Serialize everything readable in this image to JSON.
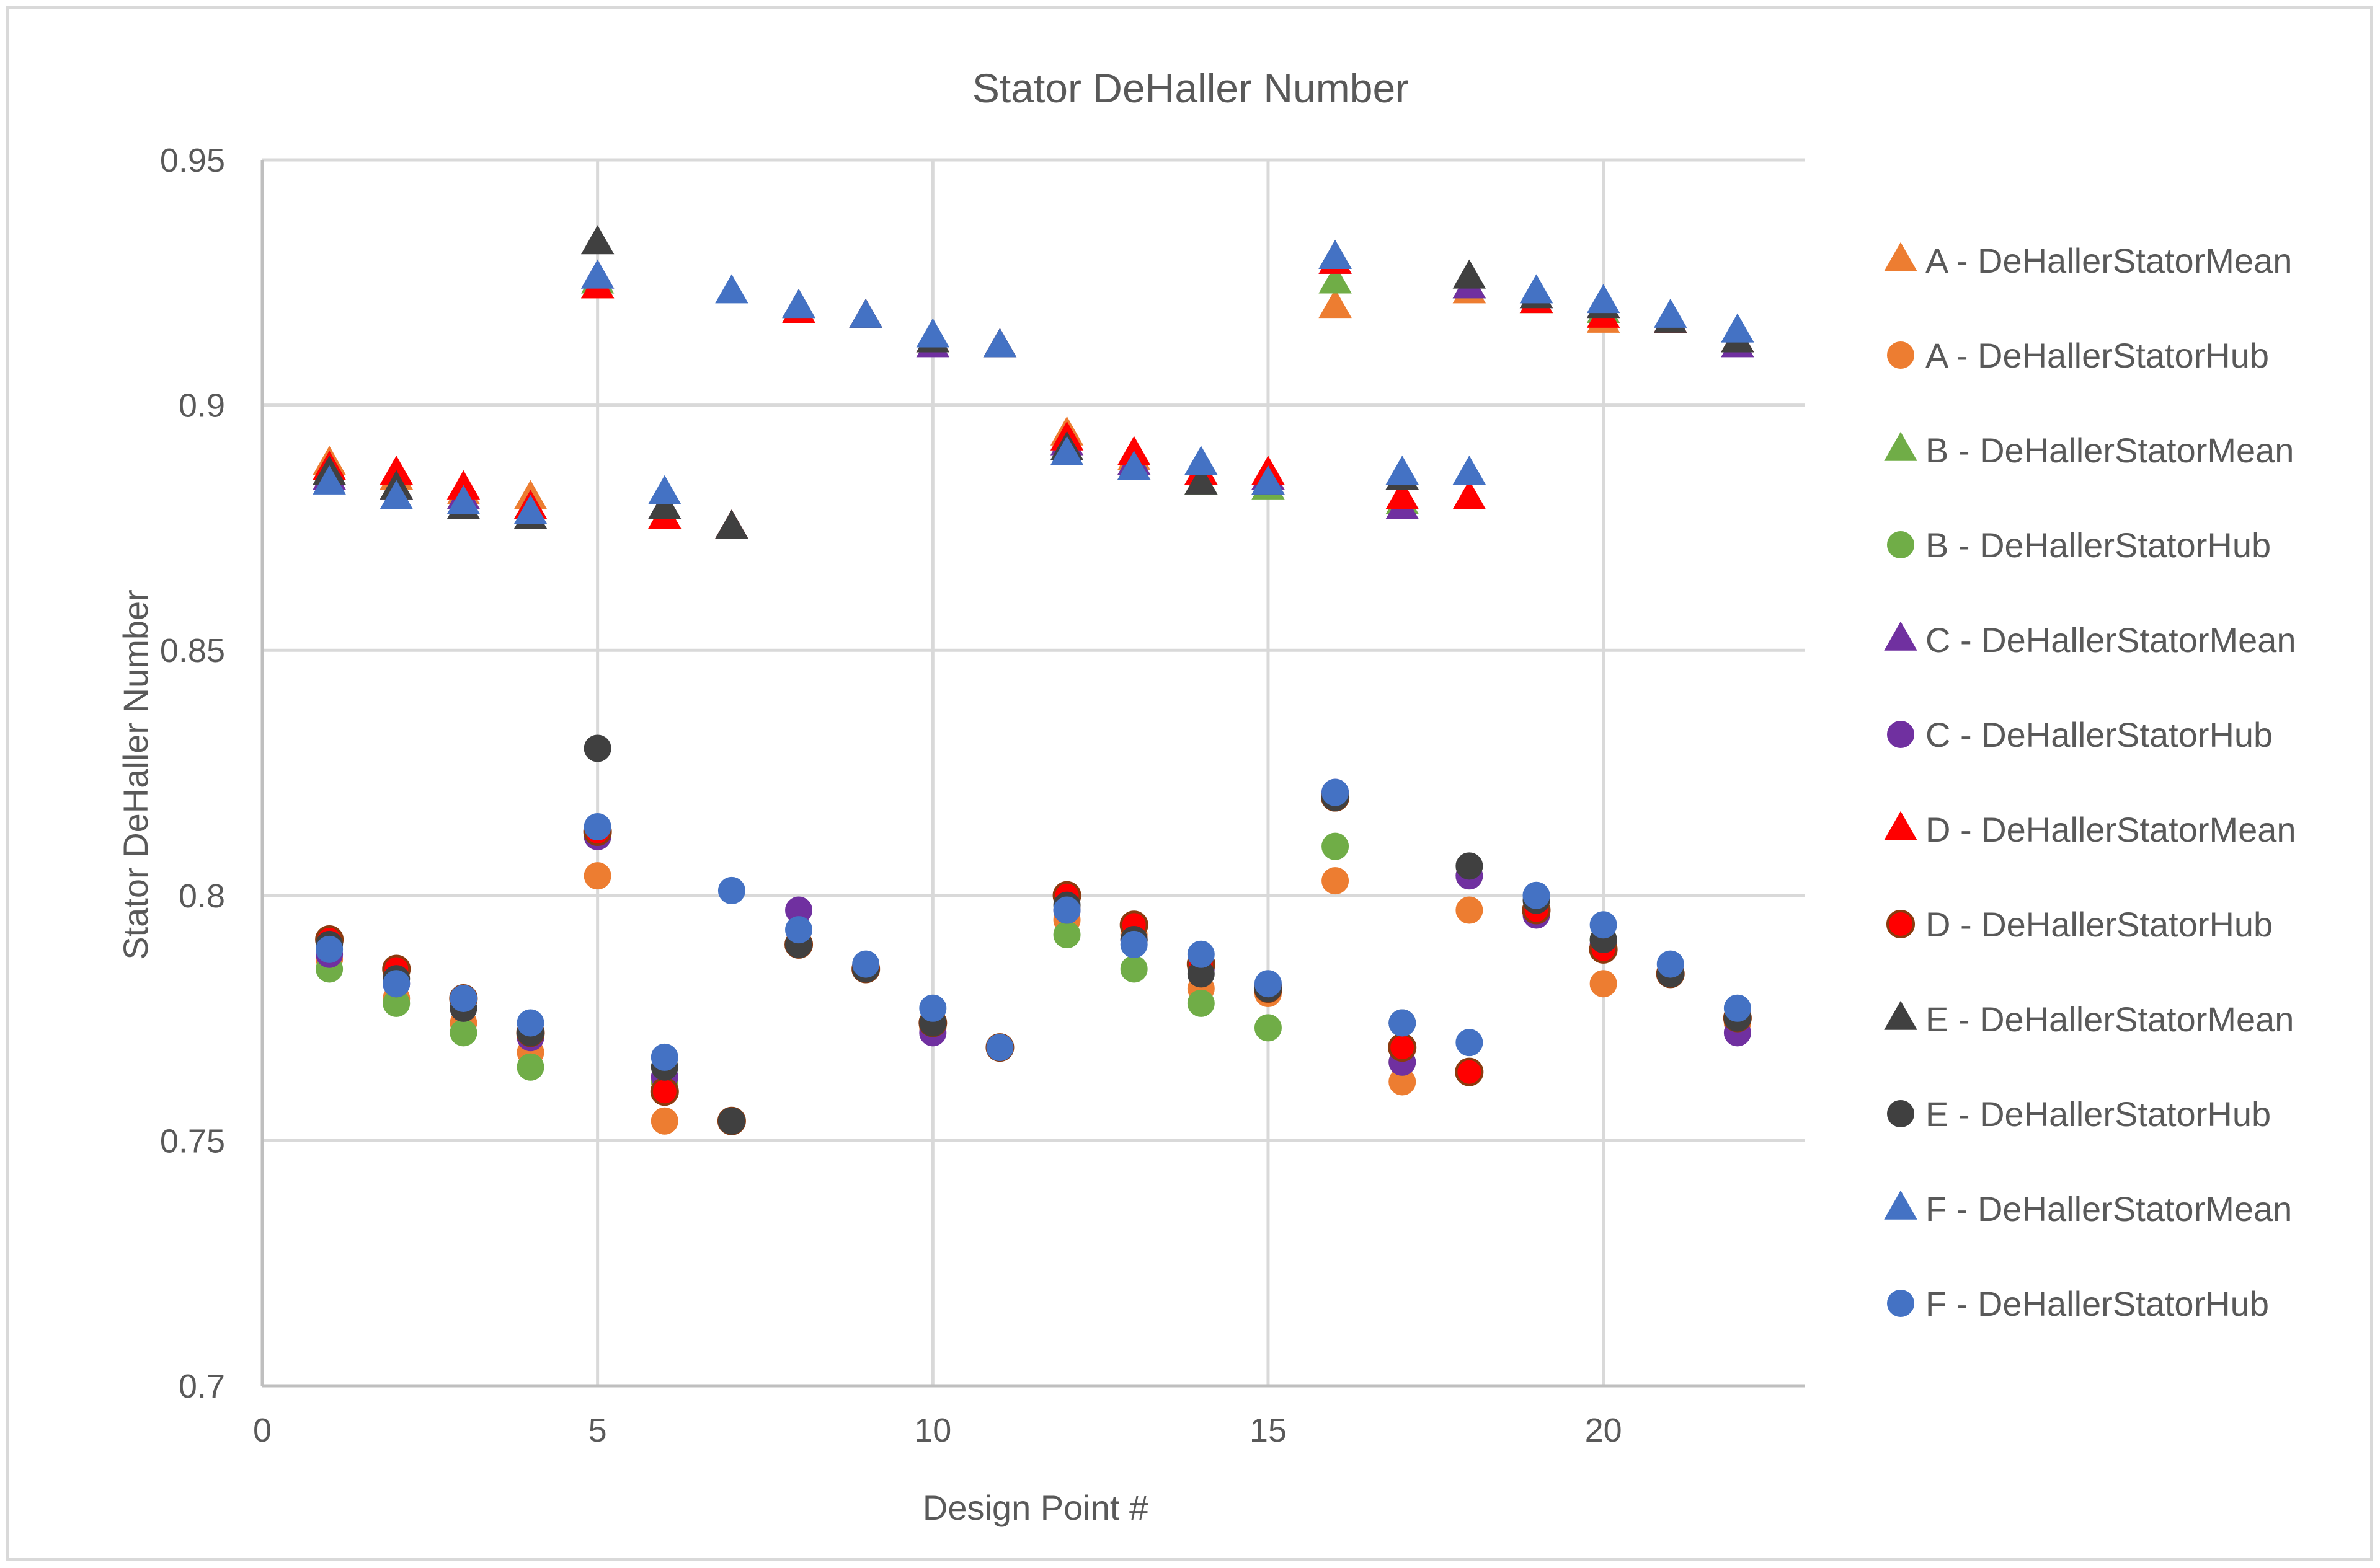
{
  "chart_data": {
    "type": "scatter",
    "title": "Stator DeHaller Number",
    "xlabel": "Design Point #",
    "ylabel": "Stator DeHaller Number",
    "xlim": [
      0,
      23
    ],
    "ylim": [
      0.7,
      0.95
    ],
    "x_ticks": [
      0,
      5,
      10,
      15,
      20
    ],
    "x_tick_labels": [
      "0",
      "5",
      "10",
      "15",
      "20"
    ],
    "y_ticks": [
      0.7,
      0.75,
      0.8,
      0.85,
      0.9,
      0.95
    ],
    "y_tick_labels": [
      "0.7",
      "0.75",
      "0.8",
      "0.85",
      "0.9",
      "0.95"
    ],
    "grid": true,
    "legend_position": "right",
    "series": [
      {
        "name": "A - DeHallerStatorMean",
        "marker": "triangle",
        "color": "#ED7D31",
        "x": [
          1,
          2,
          3,
          4,
          5,
          6,
          7,
          8,
          9,
          10,
          11,
          12,
          13,
          14,
          15,
          16,
          17,
          18,
          19,
          20,
          21,
          22
        ],
        "y": [
          0.888,
          0.885,
          0.882,
          0.881,
          0.924,
          0.877,
          0.875,
          0.919,
          0.918,
          0.913,
          0.912,
          0.894,
          0.889,
          0.886,
          0.885,
          0.92,
          0.881,
          0.923,
          0.921,
          0.917,
          0.917,
          0.913
        ]
      },
      {
        "name": "A - DeHallerStatorHub",
        "marker": "circle",
        "color": "#ED7D31",
        "x": [
          1,
          2,
          3,
          4,
          5,
          6,
          7,
          8,
          9,
          10,
          11,
          12,
          13,
          14,
          15,
          16,
          17,
          18,
          19,
          20,
          21,
          22
        ],
        "y": [
          0.787,
          0.779,
          0.774,
          0.768,
          0.804,
          0.754,
          0.754,
          0.79,
          0.785,
          0.773,
          0.769,
          0.795,
          0.792,
          0.781,
          0.78,
          0.803,
          0.762,
          0.797,
          0.797,
          0.782,
          0.784,
          0.774
        ]
      },
      {
        "name": "B - DeHallerStatorMean",
        "marker": "triangle",
        "color": "#70AD47",
        "x": [
          1,
          2,
          3,
          4,
          5,
          6,
          7,
          8,
          9,
          10,
          11,
          12,
          13,
          14,
          15,
          16,
          17,
          18,
          19,
          20,
          21,
          22
        ],
        "y": [
          0.886,
          0.883,
          0.881,
          0.879,
          0.925,
          0.877,
          0.875,
          0.919,
          0.918,
          0.913,
          0.912,
          0.891,
          0.888,
          0.884,
          0.883,
          0.925,
          0.88,
          0.924,
          0.921,
          0.919,
          0.917,
          0.913
        ]
      },
      {
        "name": "B - DeHallerStatorHub",
        "marker": "circle",
        "color": "#70AD47",
        "x": [
          1,
          2,
          3,
          4,
          5,
          6,
          7,
          8,
          9,
          10,
          11,
          12,
          13,
          14,
          15,
          16,
          17,
          18,
          19,
          20,
          21,
          22
        ],
        "y": [
          0.785,
          0.778,
          0.772,
          0.765,
          0.812,
          0.762,
          0.754,
          0.79,
          0.785,
          0.774,
          0.769,
          0.792,
          0.785,
          0.778,
          0.773,
          0.81,
          0.766,
          0.804,
          0.797,
          0.791,
          0.784,
          0.775
        ]
      },
      {
        "name": "C - DeHallerStatorMean",
        "marker": "triangle",
        "color": "#7030A0",
        "x": [
          1,
          2,
          3,
          4,
          5,
          6,
          7,
          8,
          9,
          10,
          11,
          12,
          13,
          14,
          15,
          16,
          17,
          18,
          19,
          20,
          21,
          22
        ],
        "y": [
          0.885,
          0.883,
          0.881,
          0.879,
          0.926,
          0.879,
          0.875,
          0.92,
          0.918,
          0.912,
          0.912,
          0.892,
          0.888,
          0.886,
          0.885,
          0.929,
          0.879,
          0.924,
          0.922,
          0.92,
          0.917,
          0.912
        ]
      },
      {
        "name": "C - DeHallerStatorHub",
        "marker": "circle",
        "color": "#7030A0",
        "x": [
          1,
          2,
          3,
          4,
          5,
          6,
          7,
          8,
          9,
          10,
          11,
          12,
          13,
          14,
          15,
          16,
          17,
          18,
          19,
          20,
          21,
          22
        ],
        "y": [
          0.788,
          0.782,
          0.777,
          0.771,
          0.812,
          0.763,
          0.754,
          0.797,
          0.785,
          0.772,
          0.769,
          0.797,
          0.791,
          0.785,
          0.781,
          0.821,
          0.766,
          0.804,
          0.796,
          0.79,
          0.784,
          0.772
        ]
      },
      {
        "name": "D - DeHallerStatorMean",
        "marker": "triangle",
        "color": "#FF0000",
        "x": [
          1,
          2,
          3,
          4,
          5,
          6,
          7,
          8,
          9,
          10,
          11,
          12,
          13,
          14,
          15,
          16,
          17,
          18,
          19,
          20,
          21,
          22
        ],
        "y": [
          0.887,
          0.886,
          0.883,
          0.879,
          0.924,
          0.877,
          0.875,
          0.919,
          0.918,
          0.913,
          0.912,
          0.893,
          0.89,
          0.886,
          0.886,
          0.929,
          0.881,
          0.881,
          0.921,
          0.918,
          0.917,
          0.913
        ]
      },
      {
        "name": "D - DeHallerStatorHub",
        "marker": "circle",
        "color": "#FF0000",
        "stroke": "#8B3A0E",
        "x": [
          1,
          2,
          3,
          4,
          5,
          6,
          7,
          8,
          9,
          10,
          11,
          12,
          13,
          14,
          15,
          16,
          17,
          18,
          19,
          20,
          21,
          22
        ],
        "y": [
          0.791,
          0.785,
          0.779,
          0.772,
          0.813,
          0.76,
          0.754,
          0.79,
          0.785,
          0.774,
          0.769,
          0.8,
          0.794,
          0.786,
          0.781,
          0.82,
          0.769,
          0.764,
          0.797,
          0.789,
          0.784,
          0.775
        ]
      },
      {
        "name": "E - DeHallerStatorMean",
        "marker": "triangle",
        "color": "#404040",
        "x": [
          1,
          2,
          3,
          4,
          5,
          6,
          7,
          8,
          9,
          10,
          11,
          12,
          13,
          14,
          15,
          16,
          17,
          18,
          19,
          20,
          21,
          22
        ],
        "y": [
          0.886,
          0.883,
          0.879,
          0.877,
          0.933,
          0.879,
          0.875,
          0.92,
          0.918,
          0.913,
          0.912,
          0.891,
          0.887,
          0.884,
          0.884,
          0.93,
          0.885,
          0.926,
          0.922,
          0.92,
          0.917,
          0.913
        ]
      },
      {
        "name": "E - DeHallerStatorHub",
        "marker": "circle",
        "color": "#404040",
        "x": [
          1,
          2,
          3,
          4,
          5,
          6,
          7,
          8,
          9,
          10,
          11,
          12,
          13,
          14,
          15,
          16,
          17,
          18,
          19,
          20,
          21,
          22
        ],
        "y": [
          0.79,
          0.783,
          0.777,
          0.772,
          0.83,
          0.765,
          0.754,
          0.79,
          0.785,
          0.774,
          0.769,
          0.798,
          0.791,
          0.784,
          0.781,
          0.82,
          0.774,
          0.806,
          0.799,
          0.791,
          0.784,
          0.775
        ]
      },
      {
        "name": "F - DeHallerStatorMean",
        "marker": "triangle",
        "color": "#4472C4",
        "x": [
          1,
          2,
          3,
          4,
          5,
          6,
          7,
          8,
          9,
          10,
          11,
          12,
          13,
          14,
          15,
          16,
          17,
          18,
          19,
          20,
          21,
          22
        ],
        "y": [
          0.884,
          0.881,
          0.88,
          0.878,
          0.926,
          0.882,
          0.923,
          0.92,
          0.918,
          0.914,
          0.912,
          0.89,
          0.887,
          0.888,
          0.884,
          0.93,
          0.886,
          0.886,
          0.923,
          0.921,
          0.918,
          0.915
        ]
      },
      {
        "name": "F - DeHallerStatorHub",
        "marker": "circle",
        "color": "#4472C4",
        "x": [
          1,
          2,
          3,
          4,
          5,
          6,
          7,
          8,
          9,
          10,
          11,
          12,
          13,
          14,
          15,
          16,
          17,
          18,
          19,
          20,
          21,
          22
        ],
        "y": [
          0.789,
          0.782,
          0.779,
          0.774,
          0.814,
          0.767,
          0.801,
          0.793,
          0.786,
          0.777,
          0.769,
          0.797,
          0.79,
          0.788,
          0.782,
          0.821,
          0.774,
          0.77,
          0.8,
          0.794,
          0.786,
          0.777
        ]
      }
    ]
  }
}
